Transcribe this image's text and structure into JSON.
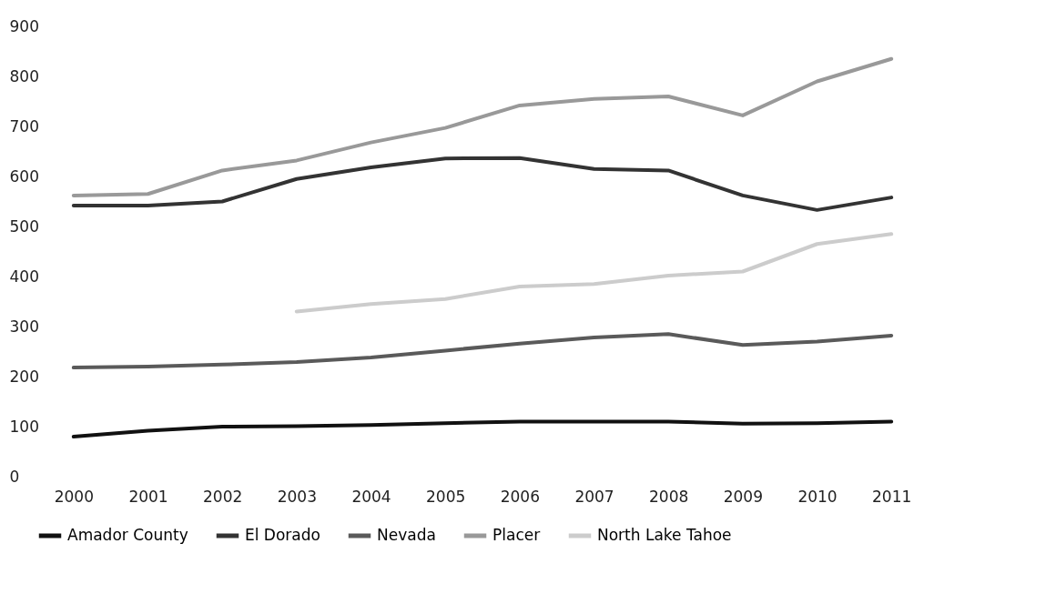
{
  "chart_data": {
    "type": "line",
    "categories": [
      "2000",
      "2001",
      "2002",
      "2003",
      "2004",
      "2005",
      "2006",
      "2007",
      "2008",
      "2009",
      "2010",
      "2011"
    ],
    "ylim": [
      0,
      900
    ],
    "yticks": [
      0,
      100,
      200,
      300,
      400,
      500,
      600,
      700,
      800,
      900
    ],
    "grid": false,
    "legend": "bottom",
    "series": [
      {
        "name": "Amador County",
        "color": "#111111",
        "values": [
          80,
          92,
          100,
          101,
          103,
          107,
          110,
          110,
          110,
          106,
          107,
          110
        ]
      },
      {
        "name": "El Dorado",
        "color": "#333333",
        "values": [
          542,
          542,
          550,
          595,
          618,
          636,
          637,
          615,
          612,
          562,
          533,
          558
        ]
      },
      {
        "name": "Nevada",
        "color": "#5a5a5a",
        "values": [
          218,
          220,
          224,
          229,
          238,
          252,
          266,
          278,
          285,
          263,
          270,
          282
        ]
      },
      {
        "name": "Placer",
        "color": "#999999",
        "values": [
          562,
          565,
          612,
          632,
          668,
          697,
          742,
          755,
          760,
          722,
          790,
          835
        ]
      },
      {
        "name": "North Lake Tahoe",
        "color": "#cccccc",
        "values": [
          null,
          null,
          null,
          330,
          345,
          355,
          380,
          385,
          402,
          410,
          465,
          485
        ]
      }
    ]
  }
}
